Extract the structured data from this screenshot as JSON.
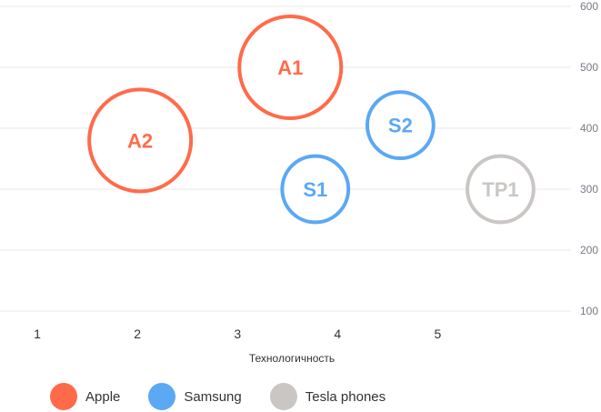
{
  "chart_data": {
    "type": "scatter",
    "title": "",
    "xlabel": "Технологичность",
    "ylabel": "",
    "x_ticks": [
      "1",
      "2",
      "3",
      "4",
      "5"
    ],
    "y_ticks": [
      "100",
      "200",
      "300",
      "400",
      "500",
      "600"
    ],
    "xlim": [
      0.6,
      6.25
    ],
    "ylim": [
      100,
      600
    ],
    "grid": true,
    "y_axis_side": "right",
    "legend_position": "bottom-left",
    "series": [
      {
        "name": "Apple",
        "color": "#ff6b4a",
        "points": [
          {
            "label": "A1",
            "x": 3.5,
            "y": 500,
            "size": 1.0
          },
          {
            "label": "A2",
            "x": 2.0,
            "y": 380,
            "size": 1.0
          }
        ]
      },
      {
        "name": "Samsung",
        "color": "#5ba8f5",
        "points": [
          {
            "label": "S1",
            "x": 3.75,
            "y": 300,
            "size": 0.65
          },
          {
            "label": "S2",
            "x": 4.6,
            "y": 405,
            "size": 0.65
          }
        ]
      },
      {
        "name": "Tesla phones",
        "color": "#c9c6c4",
        "points": [
          {
            "label": "TP1",
            "x": 5.6,
            "y": 300,
            "size": 0.65
          }
        ]
      }
    ]
  }
}
